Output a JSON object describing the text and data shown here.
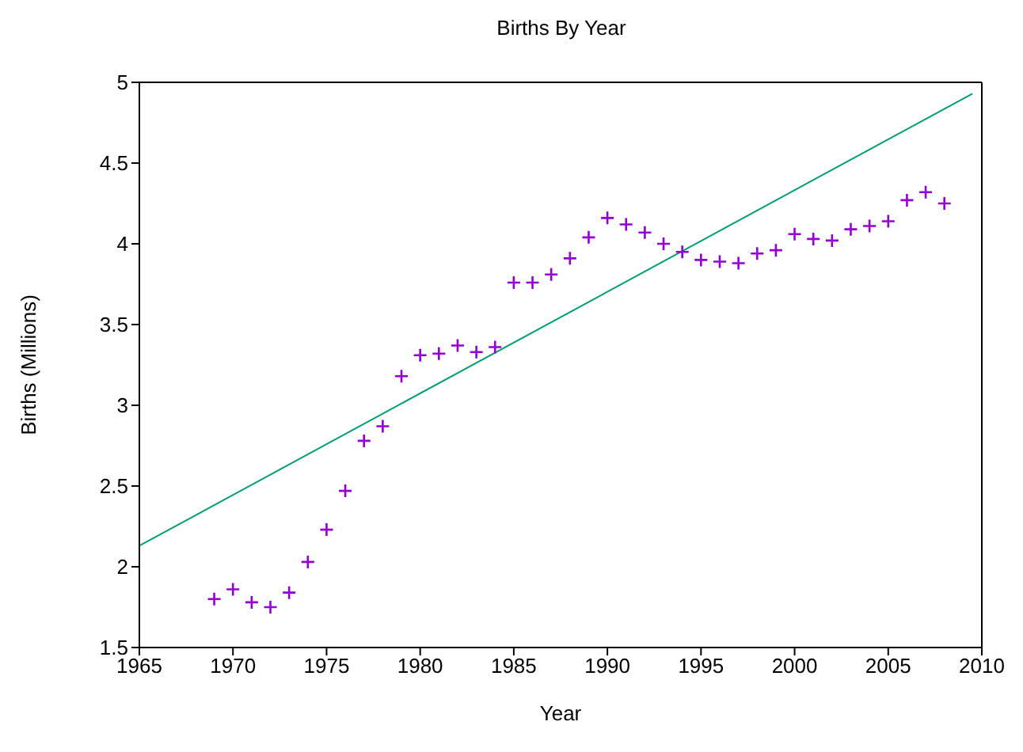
{
  "chart_data": {
    "type": "scatter",
    "title": "Births By Year",
    "xlabel": "Year",
    "ylabel": "Births (Millions)",
    "xlim": [
      1965,
      2010
    ],
    "xticks": [
      1965,
      1970,
      1975,
      1980,
      1985,
      1990,
      1995,
      2000,
      2005,
      2010
    ],
    "ylim": [
      1.5,
      5
    ],
    "yticks": [
      1.5,
      2,
      2.5,
      3,
      3.5,
      4,
      4.5,
      5
    ],
    "series": [
      {
        "color": "#9400d3",
        "marker": "cross",
        "x": [
          1969,
          1970,
          1971,
          1972,
          1973,
          1974,
          1975,
          1976,
          1977,
          1978,
          1979,
          1980,
          1981,
          1982,
          1983,
          1984,
          1985,
          1986,
          1987,
          1988,
          1989,
          1990,
          1991,
          1992,
          1993,
          1994,
          1995,
          1996,
          1997,
          1998,
          1999,
          2000,
          2001,
          2002,
          2003,
          2004,
          2005,
          2006,
          2007,
          2008
        ],
        "values": [
          1.8,
          1.86,
          1.78,
          1.75,
          1.84,
          2.03,
          2.23,
          2.47,
          2.78,
          2.87,
          3.18,
          3.31,
          3.32,
          3.37,
          3.33,
          3.36,
          3.76,
          3.76,
          3.81,
          3.91,
          4.04,
          4.16,
          4.12,
          4.07,
          4.0,
          3.95,
          3.9,
          3.89,
          3.88,
          3.94,
          3.96,
          4.06,
          4.03,
          4.02,
          4.09,
          4.11,
          4.14,
          4.27,
          4.32,
          4.25
        ]
      },
      {
        "type": "line",
        "color": "#009e73",
        "x": [
          1965,
          2009.5
        ],
        "values": [
          2.13,
          4.93
        ]
      }
    ]
  }
}
